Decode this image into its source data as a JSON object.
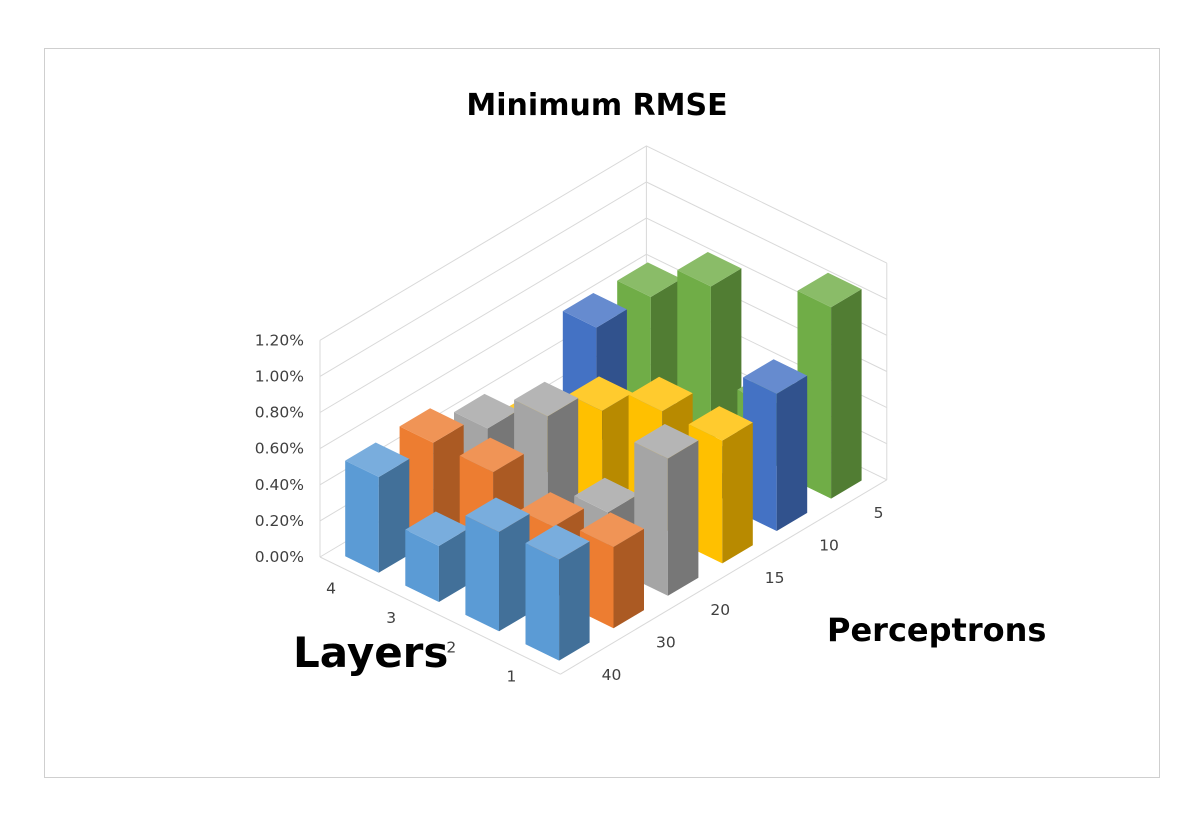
{
  "chart_data": {
    "type": "bar",
    "subtype": "3d-column",
    "title": "Minimum RMSE",
    "x_title": "Layers",
    "z_title": "Perceptrons",
    "layers": [
      "4",
      "3",
      "2",
      "1"
    ],
    "perceptrons": [
      "5",
      "10",
      "15",
      "20",
      "30",
      "40"
    ],
    "y_ticks": [
      "0.00%",
      "0.20%",
      "0.40%",
      "0.60%",
      "0.80%",
      "1.00%",
      "1.20%"
    ],
    "ylim": [
      0,
      0.012
    ],
    "grid": true,
    "legend": "none",
    "series": [
      {
        "perceptrons": "40",
        "color": "#5b9bd5",
        "values": [
          0.0053,
          0.0031,
          0.0055,
          0.0056
        ]
      },
      {
        "perceptrons": "30",
        "color": "#ed7d31",
        "values": [
          0.0054,
          0.0054,
          0.004,
          0.0045
        ]
      },
      {
        "perceptrons": "20",
        "color": "#a5a5a5",
        "values": [
          0.0044,
          0.0067,
          0.003,
          0.0076
        ]
      },
      {
        "perceptrons": "15",
        "color": "#ffc000",
        "values": [
          0.0029,
          0.0052,
          0.0068,
          0.0068
        ]
      },
      {
        "perceptrons": "10",
        "color": "#4472c4",
        "values": [
          0.0064,
          0.0025,
          0.0014,
          0.0076
        ]
      },
      {
        "perceptrons": "5",
        "color": "#70ad47",
        "values": [
          0.0063,
          0.0085,
          0.0035,
          0.0106
        ]
      }
    ]
  }
}
